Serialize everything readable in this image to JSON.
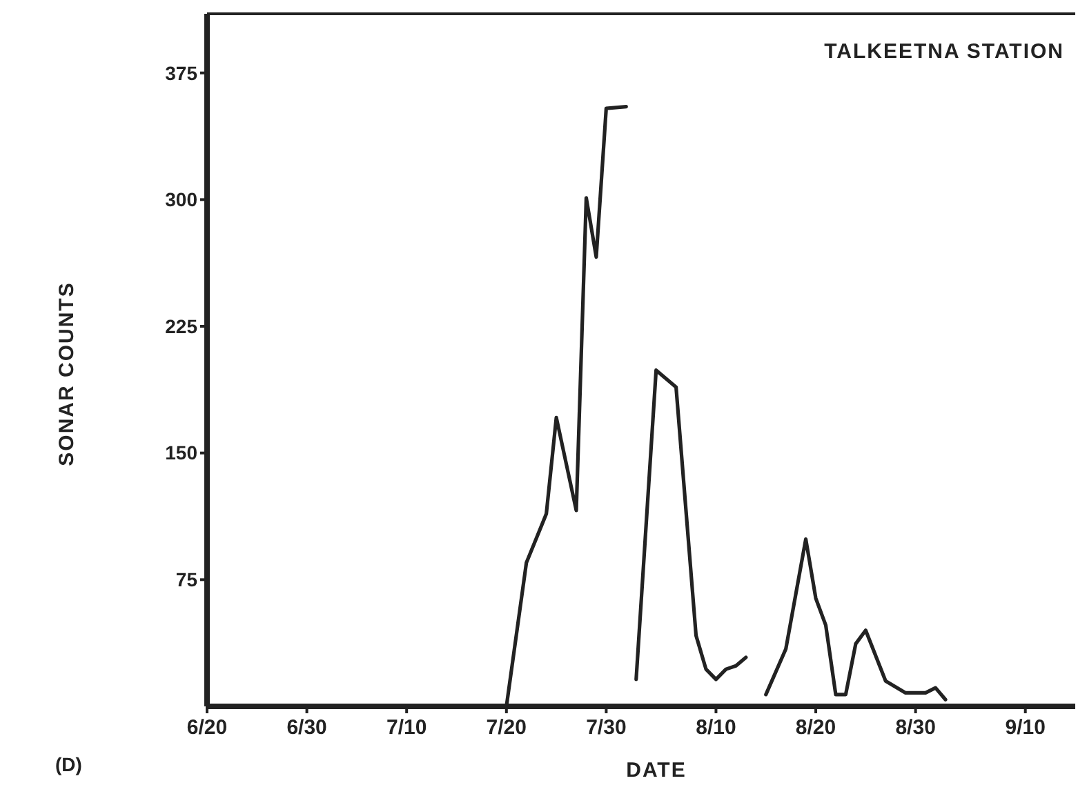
{
  "chart_data": {
    "type": "line",
    "title": "TALKEETNA STATION",
    "xlabel": "DATE",
    "ylabel": "SONAR COUNTS",
    "annotations": [
      "(D)"
    ],
    "series": [
      {
        "color": "#222222",
        "x": [
          "--07-20",
          "--07-22",
          "--07-24",
          "--07-25",
          "--07-27",
          "--07-28",
          "--07-29",
          "--07-30",
          "--08-01"
        ],
        "values": [
          0,
          85,
          114,
          171,
          116,
          301,
          266,
          354,
          355
        ]
      },
      {
        "color": "#222222",
        "x": [
          "--08-02",
          "--08-04",
          "--08-06",
          "--08-08",
          "--08-09",
          "--08-10",
          "--08-11",
          "--08-12",
          "--08-13"
        ],
        "values": [
          16,
          199,
          189,
          42,
          22,
          16,
          22,
          24,
          29
        ]
      },
      {
        "color": "#222222",
        "x": [
          "--08-15",
          "--08-17",
          "--08-19",
          "--08-20",
          "--08-21",
          "--08-22",
          "--08-23",
          "--08-24",
          "--08-25",
          "--08-27",
          "--08-29",
          "--08-31",
          "--09-01",
          "--09-02"
        ],
        "values": [
          7,
          34,
          99,
          64,
          48,
          7,
          7,
          37,
          45,
          15,
          8,
          8,
          11,
          4
        ]
      }
    ],
    "xlim": [
      "--06-20",
      "--09-15"
    ],
    "xticks": [
      {
        "value": "--06-20",
        "label": "6/20"
      },
      {
        "value": "--06-30",
        "label": "6/30"
      },
      {
        "value": "--07-10",
        "label": "7/10"
      },
      {
        "value": "--07-20",
        "label": "7/20"
      },
      {
        "value": "--07-30",
        "label": "7/30"
      },
      {
        "value": "--08-10",
        "label": "8/10"
      },
      {
        "value": "--08-20",
        "label": "8/20"
      },
      {
        "value": "--08-30",
        "label": "8/30"
      },
      {
        "value": "--09-10",
        "label": "9/10"
      }
    ],
    "ylim": [
      0,
      410
    ],
    "yticks": [
      75,
      150,
      225,
      300,
      375
    ],
    "grid": false,
    "marker": "none",
    "line_style": "solid"
  }
}
